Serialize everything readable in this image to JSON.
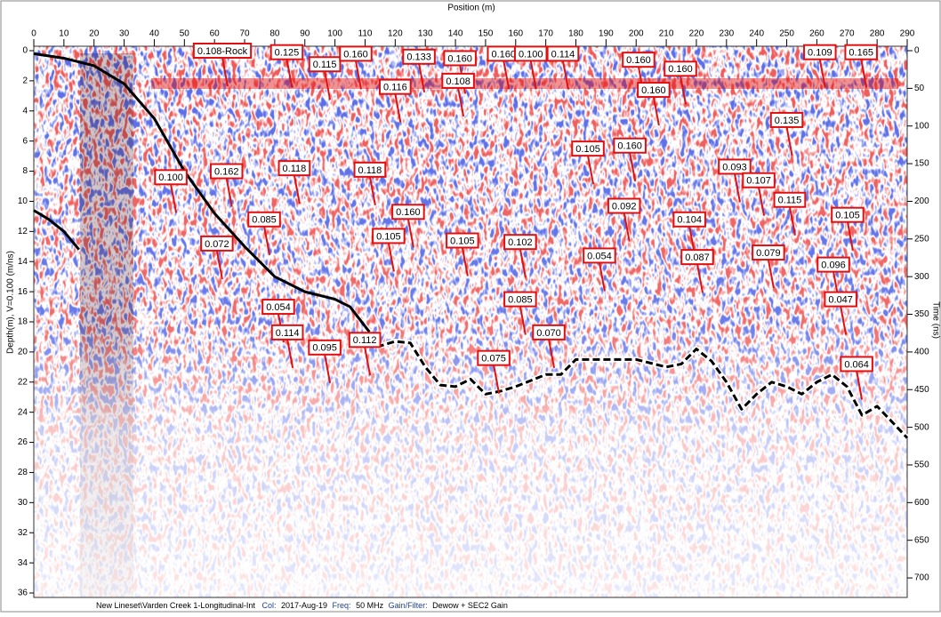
{
  "chart_data": {
    "type": "radargram",
    "title": "Position (m)",
    "y_label": "Depth(m), V=0.100 (m/ns)",
    "y2_label": "Time (ns)",
    "xlim": [
      0,
      290
    ],
    "xticks": [
      0,
      10,
      20,
      30,
      40,
      50,
      60,
      70,
      80,
      90,
      100,
      110,
      120,
      130,
      140,
      150,
      160,
      170,
      180,
      190,
      200,
      210,
      220,
      230,
      240,
      250,
      260,
      270,
      280,
      290
    ],
    "ylim": [
      0,
      36
    ],
    "yticks": [
      0,
      2,
      4,
      6,
      8,
      10,
      12,
      14,
      16,
      18,
      20,
      22,
      24,
      26,
      28,
      30,
      32,
      34,
      36
    ],
    "y2lim": [
      0,
      720
    ],
    "y2ticks": [
      0,
      50,
      100,
      150,
      200,
      250,
      300,
      350,
      400,
      450,
      500,
      550,
      600,
      650,
      700
    ],
    "lines": [
      {
        "color": "#000000",
        "dashed": false,
        "x": [
          0,
          10,
          20,
          30,
          40,
          50,
          60,
          70,
          80,
          90,
          100,
          105,
          110
        ],
        "values": [
          0.2,
          0.5,
          1.0,
          2.2,
          4.5,
          8.0,
          10.8,
          13.0,
          15.0,
          16.0,
          16.5,
          17.0,
          18.3
        ]
      },
      {
        "color": "#000000",
        "dashed": true,
        "x": [
          110,
          115,
          120,
          125,
          130,
          135,
          140,
          145,
          150,
          155,
          160,
          170,
          175,
          180,
          190,
          200,
          210,
          215,
          220,
          225,
          230,
          235,
          240,
          245,
          250,
          255,
          260,
          265,
          270,
          275,
          280,
          290
        ],
        "values": [
          18.3,
          19.6,
          19.3,
          19.4,
          21.0,
          22.2,
          22.3,
          21.8,
          22.8,
          22.6,
          22.3,
          21.5,
          21.5,
          20.5,
          20.5,
          20.5,
          21.0,
          20.8,
          19.8,
          20.6,
          22.0,
          23.8,
          22.8,
          22.0,
          22.3,
          22.8,
          22.0,
          21.5,
          22.3,
          24.2,
          23.6,
          25.7
        ]
      },
      {
        "color": "#000000",
        "dashed": false,
        "x": [
          0,
          5,
          10,
          15
        ],
        "values": [
          10.6,
          11.2,
          12.0,
          13.2
        ]
      }
    ],
    "annotations": [
      {
        "text": "0.108-Rock",
        "x": 62.6,
        "y": 0.0
      },
      {
        "text": "0.125",
        "x": 84,
        "y": 0.1
      },
      {
        "text": "0.115",
        "x": 96.6,
        "y": 0.9
      },
      {
        "text": "0.160",
        "x": 106.9,
        "y": 0.2
      },
      {
        "text": "0.133",
        "x": 127.9,
        "y": 0.4
      },
      {
        "text": "0.160",
        "x": 141.5,
        "y": 0.5
      },
      {
        "text": "0.160",
        "x": 156,
        "y": 0.2
      },
      {
        "text": "0.100",
        "x": 165,
        "y": 0.2
      },
      {
        "text": "0.114",
        "x": 175.7,
        "y": 0.2
      },
      {
        "text": "0.160",
        "x": 200.8,
        "y": 0.6
      },
      {
        "text": "0.160",
        "x": 214.7,
        "y": 1.2
      },
      {
        "text": "0.109",
        "x": 261,
        "y": 0.1
      },
      {
        "text": "0.165",
        "x": 274.7,
        "y": 0.1
      },
      {
        "text": "0.116",
        "x": 120,
        "y": 2.4
      },
      {
        "text": "0.108",
        "x": 140.9,
        "y": 2.0
      },
      {
        "text": "0.160",
        "x": 205.8,
        "y": 2.6
      },
      {
        "text": "0.135",
        "x": 250,
        "y": 4.6
      },
      {
        "text": "0.105",
        "x": 184,
        "y": 6.5
      },
      {
        "text": "0.160",
        "x": 197.9,
        "y": 6.3
      },
      {
        "text": "0.093",
        "x": 232.7,
        "y": 7.7
      },
      {
        "text": "0.107",
        "x": 240.7,
        "y": 8.6
      },
      {
        "text": "0.115",
        "x": 251,
        "y": 9.9
      },
      {
        "text": "0.100",
        "x": 45.5,
        "y": 8.4
      },
      {
        "text": "0.162",
        "x": 64,
        "y": 8.0
      },
      {
        "text": "0.118",
        "x": 86.5,
        "y": 7.8
      },
      {
        "text": "0.118",
        "x": 111.6,
        "y": 7.9
      },
      {
        "text": "0.085",
        "x": 76.5,
        "y": 11.2
      },
      {
        "text": "0.160",
        "x": 124.3,
        "y": 10.7
      },
      {
        "text": "0.092",
        "x": 196,
        "y": 10.3
      },
      {
        "text": "0.104",
        "x": 217.7,
        "y": 11.2
      },
      {
        "text": "0.105",
        "x": 270.2,
        "y": 10.9
      },
      {
        "text": "0.072",
        "x": 60.8,
        "y": 12.8
      },
      {
        "text": "0.105",
        "x": 117.8,
        "y": 12.3
      },
      {
        "text": "0.105",
        "x": 142.3,
        "y": 12.6
      },
      {
        "text": "0.102",
        "x": 161.5,
        "y": 12.7
      },
      {
        "text": "0.054",
        "x": 187.8,
        "y": 13.6
      },
      {
        "text": "0.087",
        "x": 220.3,
        "y": 13.7
      },
      {
        "text": "0.079",
        "x": 243.9,
        "y": 13.4
      },
      {
        "text": "0.096",
        "x": 265.5,
        "y": 14.2
      },
      {
        "text": "0.054",
        "x": 81.2,
        "y": 17.0
      },
      {
        "text": "0.085",
        "x": 161.5,
        "y": 16.5
      },
      {
        "text": "0.047",
        "x": 267.9,
        "y": 16.5
      },
      {
        "text": "0.114",
        "x": 84.2,
        "y": 18.7
      },
      {
        "text": "0.095",
        "x": 96.6,
        "y": 19.7
      },
      {
        "text": "0.112",
        "x": 109.9,
        "y": 19.2
      },
      {
        "text": "0.070",
        "x": 171,
        "y": 18.7
      },
      {
        "text": "0.075",
        "x": 152.7,
        "y": 20.4
      },
      {
        "text": "0.064",
        "x": 273.2,
        "y": 20.8
      }
    ],
    "footer": {
      "path": "New Lineset\\Varden Creek 1-Longitudinal-Int",
      "col_label": "Col:",
      "col": "2017-Aug-19",
      "freq_label": "Freq:",
      "freq": "50 MHz",
      "gain_label": "Gain/Filter:",
      "gain": "Dewow + SEC2 Gain"
    }
  }
}
